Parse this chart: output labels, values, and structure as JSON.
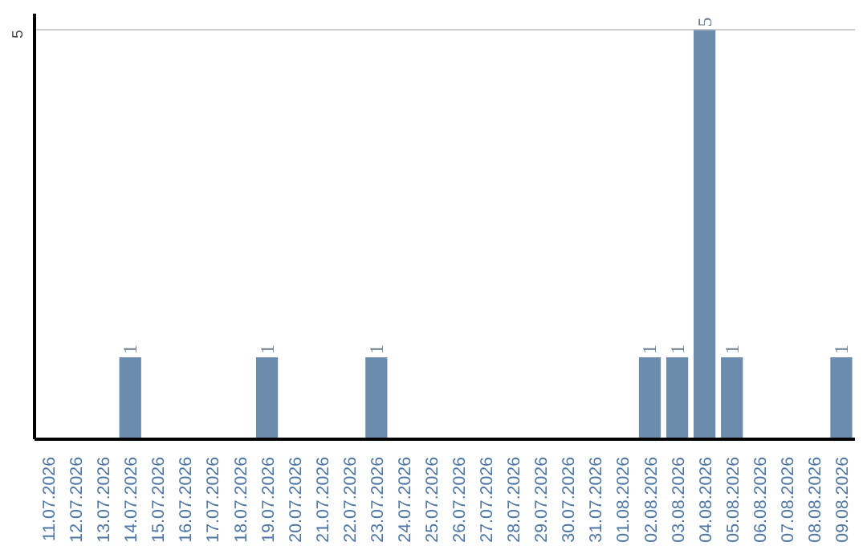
{
  "chart_data": {
    "type": "bar",
    "categories": [
      "11.07.2026",
      "12.07.2026",
      "13.07.2026",
      "14.07.2026",
      "15.07.2026",
      "16.07.2026",
      "17.07.2026",
      "18.07.2026",
      "19.07.2026",
      "20.07.2026",
      "21.07.2026",
      "22.07.2026",
      "23.07.2026",
      "24.07.2026",
      "25.07.2026",
      "26.07.2026",
      "27.07.2026",
      "28.07.2026",
      "29.07.2026",
      "30.07.2026",
      "31.07.2026",
      "01.08.2026",
      "02.08.2026",
      "03.08.2026",
      "04.08.2026",
      "05.08.2026",
      "06.08.2026",
      "07.08.2026",
      "08.08.2026",
      "09.08.2026"
    ],
    "values": [
      0,
      0,
      0,
      1,
      0,
      0,
      0,
      0,
      1,
      0,
      0,
      0,
      1,
      0,
      0,
      0,
      0,
      0,
      0,
      0,
      0,
      0,
      1,
      1,
      5,
      1,
      0,
      0,
      0,
      1
    ],
    "value_labels": [
      null,
      null,
      null,
      "1",
      null,
      null,
      null,
      null,
      "1",
      null,
      null,
      null,
      "1",
      null,
      null,
      null,
      null,
      null,
      null,
      null,
      null,
      null,
      "1",
      "1",
      "5",
      "1",
      null,
      null,
      null,
      "1"
    ],
    "color": "#6b8cac",
    "ylim": [
      0,
      5.2
    ],
    "yticks": [
      5
    ],
    "grid": "y"
  }
}
